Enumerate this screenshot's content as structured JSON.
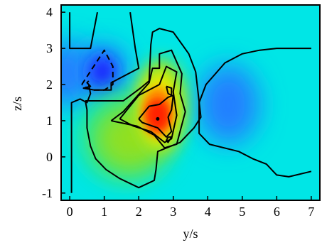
{
  "chart_data": {
    "type": "heatmap",
    "title": "",
    "xlabel": "y/s",
    "ylabel": "z/s",
    "xlim": [
      -0.25,
      7.25
    ],
    "ylim": [
      -1.2,
      4.2
    ],
    "x_ticks": [
      0,
      1,
      2,
      3,
      4,
      5,
      6,
      7
    ],
    "x_tick_labels": [
      "0",
      "1",
      "2",
      "3",
      "4",
      "5",
      "6",
      "7"
    ],
    "y_ticks": [
      -1,
      0,
      1,
      2,
      3,
      4
    ],
    "y_tick_labels": [
      "-1",
      "0",
      "1",
      "2",
      "3",
      "4"
    ],
    "grid": false,
    "legend": "none",
    "colormap": [
      "#1a1aff",
      "#2080ff",
      "#00e6e6",
      "#20e890",
      "#90e020",
      "#f0f000",
      "#ff9000",
      "#ff2000"
    ],
    "colors": {
      "background_field": "#00e6e6",
      "contour_line": "#000000",
      "frame": "#000000"
    },
    "features": [
      {
        "label": "maximum",
        "kind": "high",
        "center": [
          2.55,
          1.2
        ],
        "approx_level": "red"
      },
      {
        "label": "minimum",
        "kind": "low",
        "center": [
          0.95,
          2.35
        ],
        "approx_level": "blue"
      },
      {
        "label": "minimum",
        "kind": "low",
        "center": [
          4.6,
          1.45
        ],
        "approx_level": "light blue"
      },
      {
        "label": "shoulder",
        "kind": "high",
        "center": [
          1.6,
          0.55
        ],
        "approx_level": "green"
      }
    ],
    "contours": [
      {
        "level": "outer-left",
        "dashed": false,
        "points": [
          [
            0.05,
            -1.0
          ],
          [
            0.05,
            0.4
          ],
          [
            0.05,
            1.5
          ],
          [
            0.3,
            1.6
          ],
          [
            0.5,
            1.5
          ],
          [
            0.6,
            1.75
          ],
          [
            0.55,
            2.0
          ]
        ]
      },
      {
        "level": "upper-left",
        "dashed": false,
        "points": [
          [
            0.0,
            4.0
          ],
          [
            0.0,
            3.0
          ],
          [
            0.6,
            3.0
          ],
          [
            0.8,
            4.0
          ]
        ]
      },
      {
        "level": "upper-mid",
        "dashed": false,
        "points": [
          [
            1.75,
            4.0
          ],
          [
            1.9,
            3.0
          ],
          [
            2.0,
            2.45
          ],
          [
            1.2,
            2.05
          ],
          [
            1.2,
            1.85
          ],
          [
            1.0,
            1.85
          ],
          [
            0.7,
            1.85
          ],
          [
            0.4,
            1.9
          ],
          [
            0.6,
            1.95
          ],
          [
            0.5,
            2.05
          ],
          [
            0.55,
            2.1
          ]
        ]
      },
      {
        "level": "blue-min",
        "dashed": true,
        "points": [
          [
            0.35,
            2.0
          ],
          [
            1.0,
            2.95
          ],
          [
            1.25,
            2.5
          ],
          [
            1.25,
            2.0
          ],
          [
            1.0,
            1.85
          ],
          [
            0.6,
            1.85
          ],
          [
            0.35,
            2.0
          ]
        ]
      },
      {
        "level": "green-outer",
        "dashed": false,
        "points": [
          [
            0.45,
            1.55
          ],
          [
            0.5,
            1.3
          ],
          [
            0.5,
            0.8
          ],
          [
            0.6,
            0.3
          ],
          [
            0.75,
            -0.05
          ],
          [
            1.05,
            -0.35
          ],
          [
            1.45,
            -0.6
          ],
          [
            2.0,
            -0.85
          ],
          [
            2.45,
            -0.65
          ],
          [
            2.5,
            -0.35
          ],
          [
            2.55,
            0.15
          ],
          [
            3.2,
            0.4
          ],
          [
            3.6,
            0.8
          ],
          [
            3.8,
            1.1
          ],
          [
            3.65,
            2.35
          ],
          [
            3.45,
            2.85
          ],
          [
            3.0,
            3.45
          ],
          [
            2.6,
            3.55
          ],
          [
            2.4,
            3.45
          ],
          [
            2.35,
            3.1
          ],
          [
            2.3,
            2.1
          ],
          [
            2.05,
            1.9
          ],
          [
            1.55,
            1.55
          ],
          [
            1.05,
            1.55
          ],
          [
            0.75,
            1.55
          ],
          [
            0.45,
            1.55
          ]
        ]
      },
      {
        "level": "yellow",
        "dashed": false,
        "points": [
          [
            1.2,
            1.0
          ],
          [
            1.55,
            1.25
          ],
          [
            2.3,
            2.05
          ],
          [
            2.4,
            2.45
          ],
          [
            2.6,
            2.45
          ],
          [
            2.6,
            2.85
          ],
          [
            2.95,
            2.95
          ],
          [
            3.25,
            2.3
          ],
          [
            3.2,
            1.75
          ],
          [
            3.35,
            1.25
          ],
          [
            3.1,
            0.35
          ],
          [
            2.75,
            0.25
          ],
          [
            2.45,
            0.6
          ],
          [
            1.95,
            0.85
          ],
          [
            1.2,
            1.0
          ]
        ]
      },
      {
        "level": "orange",
        "dashed": false,
        "points": [
          [
            1.45,
            1.05
          ],
          [
            2.0,
            1.7
          ],
          [
            2.6,
            2.0
          ],
          [
            2.8,
            2.5
          ],
          [
            3.1,
            2.35
          ],
          [
            3.0,
            1.8
          ],
          [
            3.1,
            1.15
          ],
          [
            2.95,
            0.5
          ],
          [
            2.75,
            0.4
          ],
          [
            2.35,
            0.7
          ],
          [
            1.85,
            0.85
          ],
          [
            1.45,
            1.05
          ]
        ]
      },
      {
        "level": "red",
        "dashed": false,
        "points": [
          [
            2.0,
            1.05
          ],
          [
            2.3,
            1.4
          ],
          [
            2.6,
            1.45
          ],
          [
            2.85,
            1.65
          ],
          [
            3.0,
            1.7
          ],
          [
            2.95,
            1.3
          ],
          [
            2.85,
            1.1
          ],
          [
            2.95,
            0.7
          ],
          [
            2.8,
            0.55
          ],
          [
            2.55,
            0.8
          ],
          [
            2.1,
            0.95
          ],
          [
            2.0,
            1.05
          ]
        ]
      },
      {
        "level": "red-core",
        "dashed": false,
        "points": [
          [
            2.8,
            1.95
          ],
          [
            2.95,
            1.9
          ],
          [
            2.95,
            1.7
          ],
          [
            2.85,
            1.75
          ],
          [
            2.8,
            1.95
          ]
        ]
      },
      {
        "level": "red-core",
        "dashed": false,
        "points": [
          [
            2.85,
            0.55
          ],
          [
            2.95,
            0.55
          ],
          [
            2.85,
            0.4
          ],
          [
            2.8,
            0.45
          ],
          [
            2.85,
            0.55
          ]
        ]
      },
      {
        "level": "right-lobe",
        "dashed": false,
        "points": [
          [
            7.0,
            3.0
          ],
          [
            6.0,
            3.0
          ],
          [
            5.5,
            2.95
          ],
          [
            5.0,
            2.85
          ],
          [
            4.5,
            2.6
          ],
          [
            3.95,
            2.0
          ],
          [
            3.75,
            1.5
          ],
          [
            3.75,
            0.65
          ],
          [
            4.05,
            0.35
          ],
          [
            4.9,
            0.15
          ],
          [
            5.3,
            -0.05
          ],
          [
            5.7,
            -0.2
          ],
          [
            6.0,
            -0.5
          ],
          [
            6.35,
            -0.55
          ],
          [
            7.0,
            -0.4
          ]
        ]
      }
    ]
  }
}
